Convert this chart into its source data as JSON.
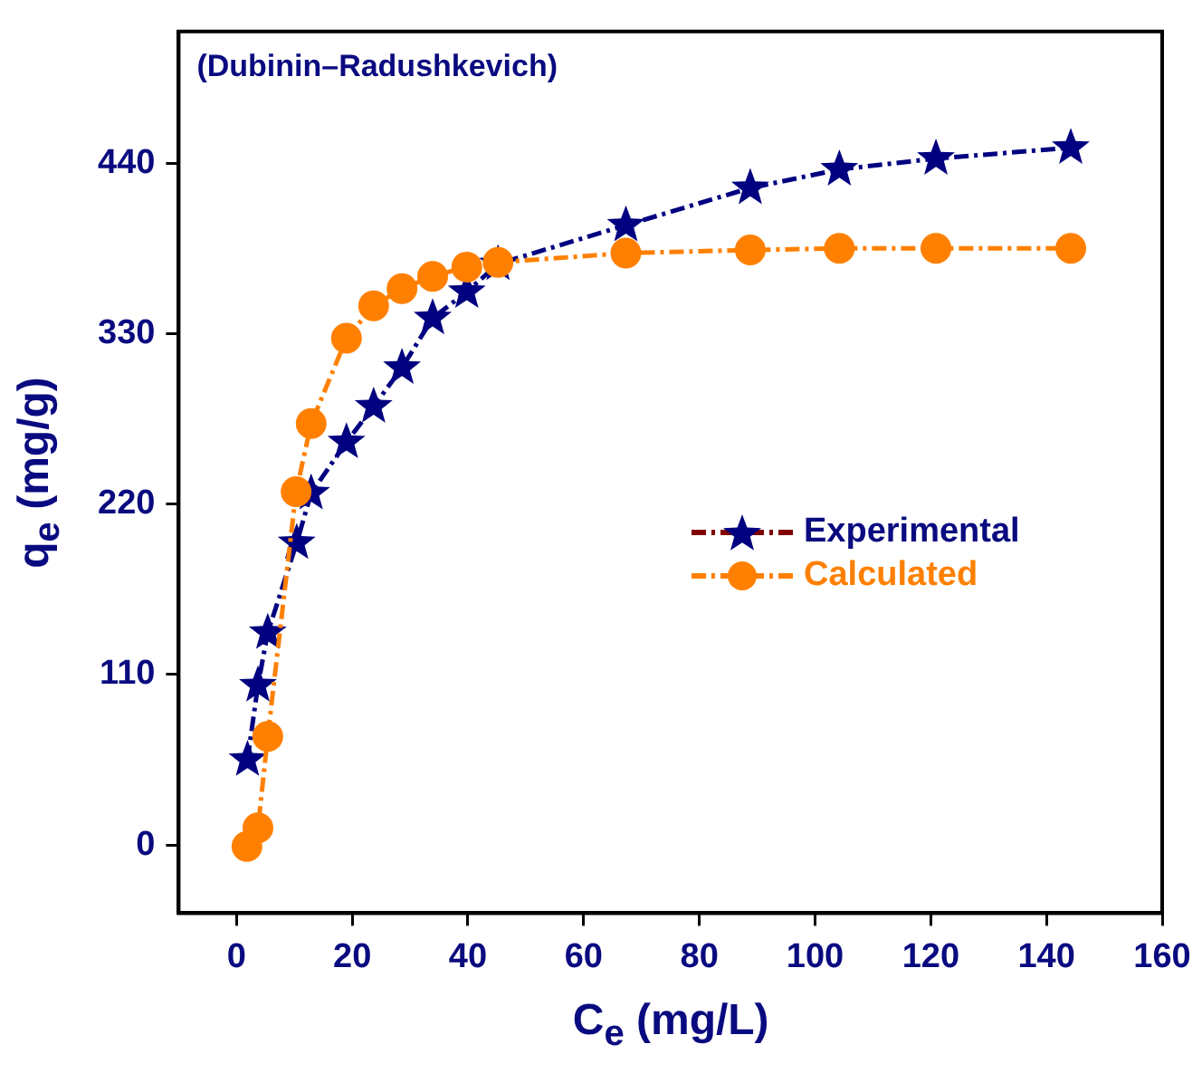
{
  "chart_data": {
    "type": "line",
    "title": "(Dubinin–Radushkevich)",
    "xlabel": "C$_{e}$ (mg/L)",
    "ylabel": "q$_{e}$ (mg/g)",
    "xlim": [
      -10,
      160
    ],
    "xticks": [
      0,
      20,
      40,
      60,
      80,
      100,
      120,
      140,
      160
    ],
    "ylim": [
      -44,
      525
    ],
    "yticks": [
      0,
      110,
      220,
      330,
      440
    ],
    "grid": false,
    "legend": "right",
    "line_style": "dashed",
    "series": [
      {
        "name": "Experimental",
        "color": "#000080",
        "marker": "star",
        "x": [
          1.9,
          3.7,
          5.4,
          10.4,
          12.9,
          19.0,
          23.7,
          28.6,
          33.9,
          39.8,
          45.2,
          67.3,
          88.8,
          104.2,
          120.9,
          144.2
        ],
        "values": [
          55,
          103,
          137,
          195,
          227,
          260,
          283,
          308,
          340,
          357,
          375,
          400,
          424,
          436,
          443,
          450
        ]
      },
      {
        "name": "Calculated",
        "color": "#ff8000",
        "marker": "circle",
        "x": [
          1.8,
          3.7,
          5.4,
          10.3,
          12.9,
          19.0,
          23.7,
          28.6,
          33.9,
          39.8,
          45.2,
          67.3,
          88.8,
          104.2,
          120.9,
          144.2
        ],
        "values": [
          -1,
          11,
          70,
          228,
          272,
          327,
          348,
          359,
          367,
          373,
          376,
          382,
          384,
          385,
          385,
          385
        ]
      }
    ]
  }
}
